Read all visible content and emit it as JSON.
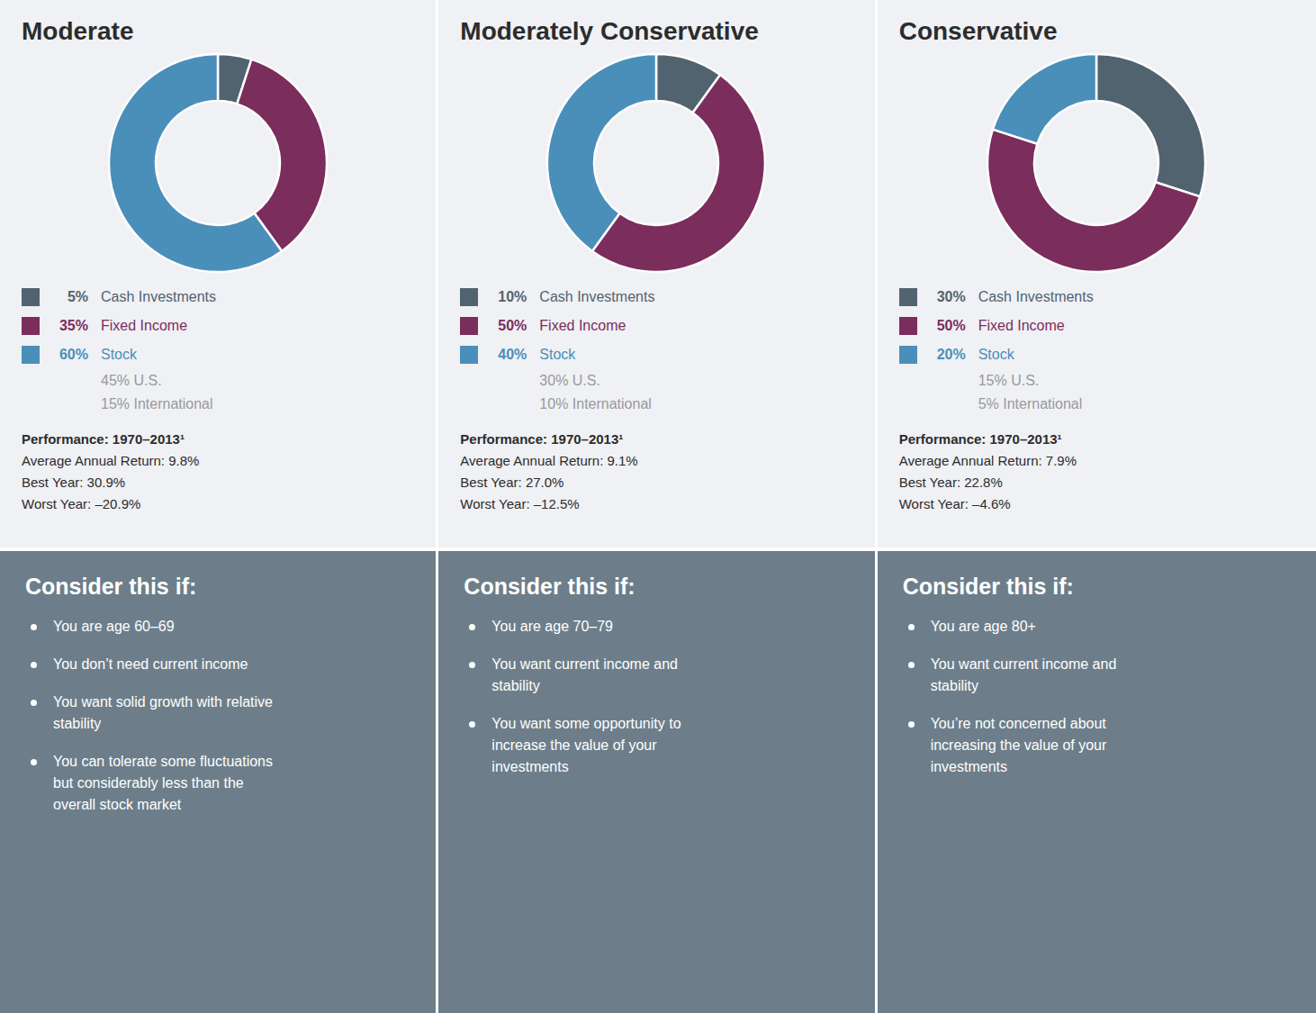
{
  "chart_data": [
    {
      "type": "pie",
      "title": "Moderate",
      "categories": [
        "Cash Investments",
        "Fixed Income",
        "Stock"
      ],
      "values": [
        5,
        35,
        60
      ],
      "value_labels": [
        "5%",
        "35%",
        "60%"
      ],
      "colors": [
        "#526370",
        "#7b2d5c",
        "#4a8fba"
      ],
      "legend": "bottom",
      "annotations": [
        [
          "45% U.S.",
          "15% International"
        ],
        [
          "Performance: 1970–2013¹",
          "Average Annual Return: 9.8%",
          "Best Year: 30.9%",
          "Worst Year: –20.9%"
        ],
        [
          "Consider this if:",
          "You are age 60–69",
          "You don’t need current income",
          "You want solid growth with relative\nstability",
          "You can tolerate some fluctuations\nbut considerably less than the\noverall stock market"
        ]
      ]
    },
    {
      "type": "pie",
      "title": "Moderately Conservative",
      "categories": [
        "Cash Investments",
        "Fixed Income",
        "Stock"
      ],
      "values": [
        10,
        50,
        40
      ],
      "value_labels": [
        "10%",
        "50%",
        "40%"
      ],
      "colors": [
        "#526370",
        "#7b2d5c",
        "#4a8fba"
      ],
      "legend": "bottom",
      "annotations": [
        [
          "30% U.S.",
          "10% International"
        ],
        [
          "Performance: 1970–2013¹",
          "Average Annual Return: 9.1%",
          "Best Year: 27.0%",
          "Worst Year: –12.5%"
        ],
        [
          "Consider this if:",
          "You are age 70–79",
          "You want current income and\nstability",
          "You want some opportunity to\nincrease the value of your\ninvestments"
        ]
      ]
    },
    {
      "type": "pie",
      "title": "Conservative",
      "categories": [
        "Cash Investments",
        "Fixed Income",
        "Stock"
      ],
      "values": [
        30,
        50,
        20
      ],
      "value_labels": [
        "30%",
        "50%",
        "20%"
      ],
      "colors": [
        "#526370",
        "#7b2d5c",
        "#4a8fba"
      ],
      "legend": "bottom",
      "annotations": [
        [
          "15% U.S.",
          "5% International"
        ],
        [
          "Performance: 1970–2013¹",
          "Average Annual Return: 7.9%",
          "Best Year: 22.8%",
          "Worst Year: –4.6%"
        ],
        [
          "Consider this if:",
          "You are age 80+",
          "You want current income and\nstability",
          "You’re not concerned about\nincreasing the value of your\ninvestments"
        ]
      ]
    }
  ]
}
